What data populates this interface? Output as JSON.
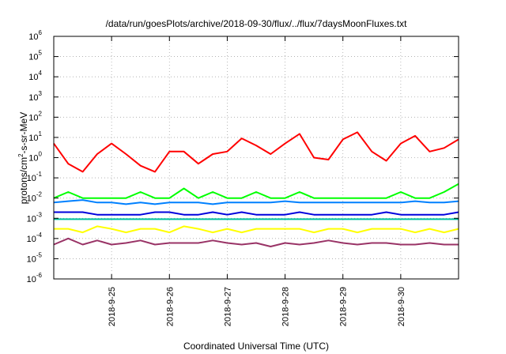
{
  "chart_data": {
    "type": "line",
    "title": "/data/run/goesPlots/archive/2018-09-30/flux/../flux/7daysMoonFluxes.txt",
    "xlabel": "Coordinated Universal Time (UTC)",
    "ylabel": "protons/cm2-s-sr-MeV",
    "yscale": "log",
    "ylim": [
      1e-06,
      1000000.0
    ],
    "xlim": [
      "2018-09-24 00:00",
      "2018-10-01 00:00"
    ],
    "y_ticks": [
      {
        "base": "10",
        "exp": "-6"
      },
      {
        "base": "10",
        "exp": "-5"
      },
      {
        "base": "10",
        "exp": "-4"
      },
      {
        "base": "10",
        "exp": "-3"
      },
      {
        "base": "10",
        "exp": "-2"
      },
      {
        "base": "10",
        "exp": "-1"
      },
      {
        "base": "10",
        "exp": "0"
      },
      {
        "base": "10",
        "exp": "1"
      },
      {
        "base": "10",
        "exp": "2"
      },
      {
        "base": "10",
        "exp": "3"
      },
      {
        "base": "10",
        "exp": "4"
      },
      {
        "base": "10",
        "exp": "5"
      },
      {
        "base": "10",
        "exp": "6"
      }
    ],
    "x_ticks": [
      "2018-9-25",
      "2018-9-26",
      "2018-9-27",
      "2018-9-28",
      "2018-9-29",
      "2018-9-30"
    ],
    "grid": true,
    "legend": "none",
    "x": [
      "2018-09-24 00:00",
      "2018-09-24 06:00",
      "2018-09-24 12:00",
      "2018-09-24 18:00",
      "2018-09-25 00:00",
      "2018-09-25 06:00",
      "2018-09-25 12:00",
      "2018-09-25 18:00",
      "2018-09-26 00:00",
      "2018-09-26 06:00",
      "2018-09-26 12:00",
      "2018-09-26 18:00",
      "2018-09-27 00:00",
      "2018-09-27 06:00",
      "2018-09-27 12:00",
      "2018-09-27 18:00",
      "2018-09-28 00:00",
      "2018-09-28 06:00",
      "2018-09-28 12:00",
      "2018-09-28 18:00",
      "2018-09-29 00:00",
      "2018-09-29 06:00",
      "2018-09-29 12:00",
      "2018-09-29 18:00",
      "2018-09-30 00:00",
      "2018-09-30 06:00",
      "2018-09-30 12:00",
      "2018-09-30 18:00",
      "2018-10-01 00:00"
    ],
    "series": [
      {
        "color": "#ff0000",
        "values": [
          5,
          0.5,
          0.2,
          1.5,
          5,
          1.5,
          0.4,
          0.2,
          2,
          2,
          0.5,
          1.5,
          2,
          9,
          4,
          1.5,
          5,
          15,
          1,
          0.8,
          8,
          18,
          2,
          0.7,
          5,
          12,
          2,
          3,
          8
        ]
      },
      {
        "color": "#00ff00",
        "values": [
          0.01,
          0.02,
          0.01,
          0.01,
          0.01,
          0.01,
          0.02,
          0.01,
          0.01,
          0.03,
          0.01,
          0.02,
          0.01,
          0.01,
          0.02,
          0.01,
          0.01,
          0.02,
          0.01,
          0.01,
          0.01,
          0.01,
          0.01,
          0.01,
          0.02,
          0.01,
          0.01,
          0.02,
          0.05
        ]
      },
      {
        "color": "#0080ff",
        "values": [
          0.006,
          0.007,
          0.008,
          0.006,
          0.006,
          0.005,
          0.006,
          0.005,
          0.006,
          0.006,
          0.006,
          0.005,
          0.006,
          0.006,
          0.006,
          0.006,
          0.007,
          0.006,
          0.006,
          0.006,
          0.006,
          0.006,
          0.006,
          0.006,
          0.006,
          0.007,
          0.006,
          0.006,
          0.007
        ]
      },
      {
        "color": "#0000dd",
        "values": [
          0.002,
          0.002,
          0.002,
          0.0015,
          0.0015,
          0.0015,
          0.0015,
          0.002,
          0.002,
          0.0015,
          0.0015,
          0.002,
          0.0015,
          0.002,
          0.0015,
          0.0015,
          0.0015,
          0.002,
          0.0015,
          0.0015,
          0.0015,
          0.0015,
          0.0015,
          0.002,
          0.0015,
          0.0015,
          0.0015,
          0.0015,
          0.002
        ]
      },
      {
        "color": "#00c0a0",
        "values": [
          0.0009,
          0.0009,
          0.0009,
          0.0009,
          0.0009,
          0.0009,
          0.0009,
          0.0009,
          0.0009,
          0.0009,
          0.0009,
          0.0009,
          0.0009,
          0.0009,
          0.0009,
          0.0009,
          0.0009,
          0.0009,
          0.0009,
          0.0009,
          0.0009,
          0.0009,
          0.0009,
          0.0009,
          0.0009,
          0.0009,
          0.0009,
          0.0009,
          0.0009
        ]
      },
      {
        "color": "#ffff00",
        "values": [
          0.0003,
          0.0003,
          0.0002,
          0.0004,
          0.0003,
          0.0002,
          0.0003,
          0.0003,
          0.0002,
          0.0004,
          0.0003,
          0.0002,
          0.0003,
          0.0002,
          0.0003,
          0.0003,
          0.0003,
          0.0003,
          0.0002,
          0.0003,
          0.0003,
          0.0002,
          0.0003,
          0.0003,
          0.0003,
          0.0002,
          0.0003,
          0.0002,
          0.0003
        ]
      },
      {
        "color": "#993366",
        "values": [
          5e-05,
          0.0001,
          5e-05,
          8e-05,
          5e-05,
          6e-05,
          8e-05,
          5e-05,
          6e-05,
          6e-05,
          6e-05,
          8e-05,
          6e-05,
          5e-05,
          6e-05,
          4e-05,
          6e-05,
          5e-05,
          6e-05,
          8e-05,
          6e-05,
          5e-05,
          6e-05,
          6e-05,
          5e-05,
          5e-05,
          6e-05,
          5e-05,
          5e-05
        ]
      }
    ]
  }
}
